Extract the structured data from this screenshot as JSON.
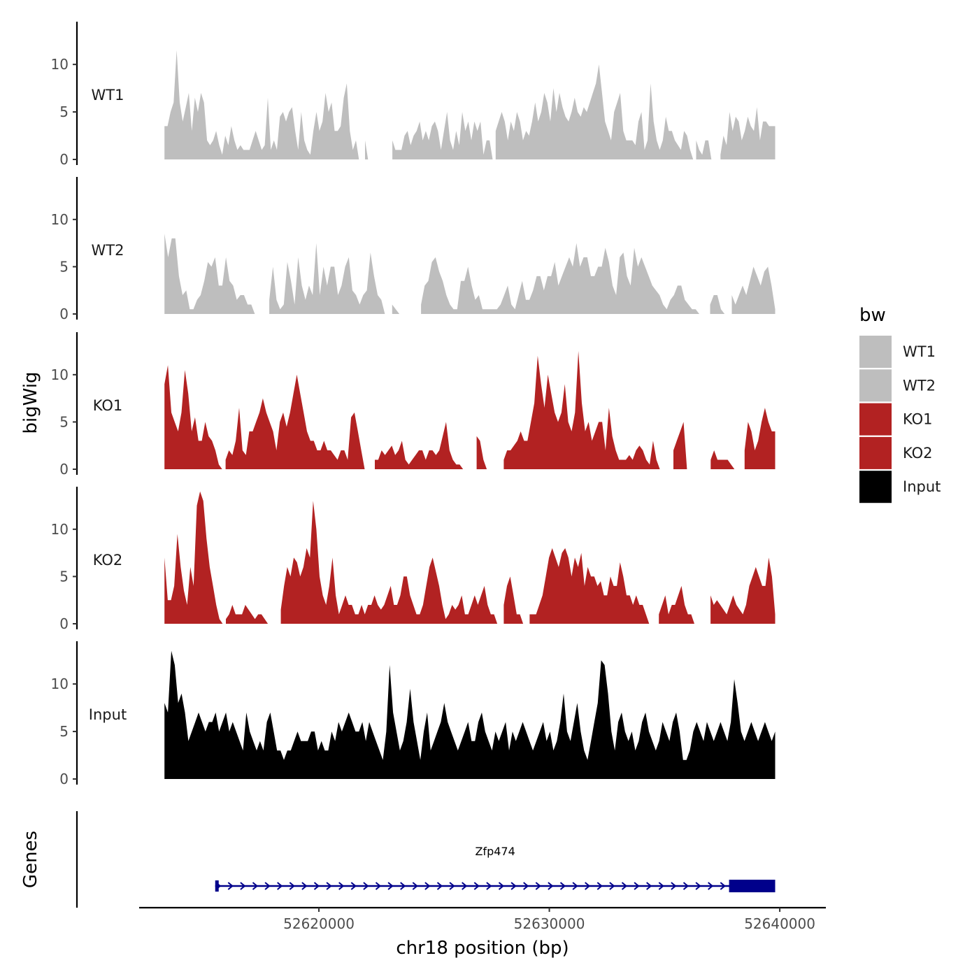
{
  "chart_data": {
    "type": "area",
    "xlabel": "chr18 position (bp)",
    "ylabel": "bigWig",
    "gene_panel_label": "Genes",
    "xlim": [
      52612200,
      52642000
    ],
    "x_ticks": [
      52620000,
      52630000,
      52640000
    ],
    "x_tick_labels": [
      "52620000",
      "52630000",
      "52640000"
    ],
    "ylim": [
      0,
      14.5
    ],
    "y_ticks": [
      0,
      5,
      10
    ],
    "y_tick_labels": [
      "0",
      "5",
      "10"
    ],
    "data_range": [
      52613300,
      52639800
    ],
    "legend": {
      "title": "bw",
      "placement": "right",
      "items": [
        {
          "label": "WT1",
          "color": "#bebebe"
        },
        {
          "label": "WT2",
          "color": "#bebebe"
        },
        {
          "label": "KO1",
          "color": "#b22222"
        },
        {
          "label": "KO2",
          "color": "#b22222"
        },
        {
          "label": "Input",
          "color": "#000000"
        }
      ]
    },
    "series": [
      {
        "name": "WT1",
        "color": "#bebebe",
        "values": [
          3.5,
          3.5,
          5,
          6,
          11.5,
          6,
          4,
          5.5,
          7,
          3,
          6.5,
          5,
          7,
          6,
          2,
          1.5,
          2,
          3,
          1.5,
          0.5,
          2.5,
          1.5,
          3.5,
          2,
          1,
          1.5,
          1,
          1,
          1,
          2,
          3,
          2,
          1,
          1.5,
          6.5,
          1,
          2,
          1,
          4.5,
          5,
          4,
          5,
          5.5,
          3,
          1,
          5,
          2,
          1,
          0.5,
          3,
          5,
          3,
          4,
          7,
          5,
          6,
          3,
          3,
          3.5,
          6.5,
          8,
          3,
          1,
          2,
          0,
          0,
          2,
          0,
          0,
          0,
          0,
          0,
          0,
          0,
          0,
          2,
          1,
          1,
          1,
          2.5,
          3,
          1.5,
          2.5,
          3,
          4,
          2,
          3,
          2,
          3.5,
          4,
          3,
          1,
          3,
          5,
          2,
          1,
          3,
          1.5,
          5,
          3,
          4,
          2,
          4,
          3,
          4,
          0.5,
          2,
          2,
          0,
          3,
          4,
          5,
          4,
          2,
          4,
          3,
          5,
          4,
          2,
          3,
          2.5,
          4,
          6,
          4,
          5,
          7,
          6,
          4,
          7.5,
          5,
          7,
          5.5,
          4.5,
          4,
          5,
          6.5,
          5,
          4.5,
          5.5,
          5,
          6,
          7,
          8,
          10,
          7,
          4,
          3,
          2,
          5,
          6,
          7,
          3,
          2,
          2,
          2,
          1.5,
          4,
          5,
          1,
          2,
          8,
          4,
          2,
          1,
          2,
          4.5,
          3,
          3,
          2,
          1.5,
          1,
          3,
          2.5,
          1,
          0,
          2,
          1,
          0.5,
          2,
          2,
          0,
          0,
          0,
          0.5,
          2.5,
          1.5,
          5,
          3,
          4.5,
          4,
          2,
          3,
          4.5,
          3.5,
          3,
          5.5,
          2,
          4,
          4,
          3.5,
          3.5,
          3.5
        ]
      },
      {
        "name": "WT2",
        "color": "#bebebe",
        "values": [
          8.5,
          6,
          8,
          8,
          4,
          2,
          2.5,
          0.5,
          0.5,
          1.5,
          2,
          3.5,
          5.5,
          5,
          6,
          3,
          3,
          6,
          3.5,
          3,
          1.5,
          2,
          2,
          1,
          1,
          0,
          0,
          0,
          0,
          1.5,
          5,
          1.5,
          0.5,
          1,
          5.5,
          3.5,
          1,
          6,
          3,
          1.5,
          3,
          2,
          7.5,
          2,
          5,
          3,
          5,
          5,
          2,
          3,
          5,
          6,
          2.5,
          2,
          1,
          2,
          2.5,
          6.5,
          4,
          2,
          1.5,
          0,
          0,
          1,
          0.5,
          0,
          0,
          0,
          0,
          0,
          0,
          1,
          3,
          3.5,
          5.5,
          6,
          4.5,
          3.5,
          2,
          1,
          0.5,
          0.5,
          3.5,
          3.5,
          5,
          3,
          1.5,
          2,
          0.5,
          0.5,
          0.5,
          0.5,
          0.5,
          1,
          2,
          3,
          1,
          0.5,
          2,
          3.5,
          1.5,
          1.5,
          2.5,
          4,
          4,
          2.5,
          4,
          4,
          5.5,
          3,
          4,
          5,
          6,
          5,
          7.5,
          5,
          6,
          6,
          4,
          4,
          5,
          5,
          7,
          5.5,
          3,
          2,
          6,
          6.5,
          4,
          3,
          7,
          5,
          6,
          5,
          4,
          3,
          2.5,
          2,
          1,
          0.5,
          1.5,
          2,
          3,
          3,
          1.5,
          1,
          0.5,
          0.5,
          0,
          0,
          0,
          1,
          2,
          2,
          0.5,
          0,
          0,
          2,
          1,
          2,
          3,
          2,
          3.5,
          5,
          4,
          3,
          4.5,
          5,
          3,
          0.5
        ]
      },
      {
        "name": "KO1",
        "color": "#b22222",
        "values": [
          9,
          11,
          6,
          5,
          4,
          6,
          10.5,
          8,
          4,
          5.5,
          3,
          3,
          5,
          3.5,
          3,
          2,
          0.5,
          0,
          1,
          2,
          1.5,
          3,
          6.5,
          2,
          1.5,
          4,
          4,
          5,
          6,
          7.5,
          6,
          5,
          4,
          2,
          5,
          6,
          4.5,
          6,
          8,
          10,
          8,
          6,
          4,
          3,
          3,
          2,
          2,
          3,
          2,
          2,
          1.5,
          1,
          2,
          2,
          1,
          5.5,
          6,
          4,
          2,
          0,
          0,
          0,
          1,
          1,
          2,
          1.5,
          2,
          2.5,
          1.5,
          2,
          3,
          1,
          0.5,
          1,
          1.5,
          2,
          2,
          1,
          2,
          2,
          1.5,
          2,
          3.5,
          5,
          2,
          1,
          0.5,
          0.5,
          0,
          0,
          0,
          0,
          3.5,
          3,
          1,
          0,
          0,
          0,
          0,
          0,
          1,
          2,
          2,
          2.5,
          3,
          4,
          3,
          3,
          5,
          7,
          12,
          9,
          6.5,
          10,
          8,
          6,
          5,
          6,
          9,
          5,
          4,
          6,
          12.5,
          7,
          4,
          5,
          3,
          4,
          5,
          5,
          2,
          6.5,
          3.5,
          2,
          1,
          1,
          1,
          1.5,
          1,
          2,
          2.5,
          2,
          1,
          0.5,
          3,
          1,
          0,
          0,
          0,
          0,
          2,
          3,
          4,
          5,
          0,
          0,
          0,
          0,
          0,
          0,
          0,
          1,
          2,
          1,
          1,
          1,
          1,
          0.5,
          0,
          0,
          0,
          2,
          5,
          4,
          2,
          3,
          5,
          6.5,
          5,
          4,
          4
        ]
      },
      {
        "name": "KO2",
        "color": "#b22222",
        "values": [
          7,
          2.5,
          2.5,
          4,
          9.5,
          6,
          3.5,
          2,
          6,
          4,
          12.5,
          14,
          13,
          9,
          6,
          4,
          2,
          0.5,
          0,
          0.5,
          1,
          2,
          1,
          1,
          1,
          2,
          1.5,
          1,
          0.5,
          1,
          1,
          0.5,
          0,
          0,
          0,
          0,
          1.5,
          4,
          6,
          5,
          7,
          6.5,
          5,
          6,
          8,
          7,
          13,
          10,
          5,
          3,
          2,
          4,
          7,
          3,
          1,
          2,
          3,
          2,
          2,
          1,
          1,
          2,
          1,
          2,
          2,
          3,
          2,
          1.5,
          2,
          3,
          4,
          2,
          2,
          3,
          5,
          5,
          3,
          2,
          1,
          1,
          2,
          4,
          6,
          7,
          5.5,
          4,
          2,
          0.5,
          1,
          2,
          1.5,
          2,
          3,
          1,
          1,
          2,
          3,
          2,
          3,
          4,
          2,
          1,
          1,
          0,
          0,
          2,
          4,
          5,
          3,
          1,
          1,
          0,
          0,
          1,
          1,
          1,
          2,
          3,
          5,
          7,
          8,
          7,
          6,
          7.5,
          8,
          7,
          5,
          7,
          6,
          7.5,
          4,
          6,
          5,
          5,
          4,
          4.5,
          3,
          3,
          5,
          4,
          4,
          6.5,
          5,
          3,
          3,
          2,
          3,
          2,
          2,
          1,
          0,
          0,
          0,
          1,
          2,
          3,
          1,
          2,
          2,
          3,
          4,
          2,
          1,
          1,
          0,
          0,
          0,
          0,
          0,
          3,
          2,
          2.5,
          2,
          1.5,
          1,
          2,
          3,
          2,
          1.5,
          1,
          2,
          4,
          5,
          6,
          5,
          4,
          4,
          7,
          5,
          1
        ]
      },
      {
        "name": "Input",
        "color": "#000000",
        "values": [
          8,
          7,
          13.5,
          12,
          8,
          9,
          7,
          4,
          5,
          6,
          7,
          6,
          5,
          6,
          6,
          7,
          5,
          6,
          7,
          5,
          6,
          5,
          4,
          3,
          7,
          5,
          4,
          3,
          4,
          3,
          6,
          7,
          5,
          3,
          3,
          2,
          3,
          3,
          4,
          5,
          4,
          4,
          4,
          5,
          5,
          3,
          4,
          3,
          3,
          5,
          4,
          6,
          5,
          6,
          7,
          6,
          5,
          5,
          6,
          4,
          6,
          5,
          4,
          3,
          2,
          5,
          12,
          7,
          5,
          3,
          4,
          6,
          9.5,
          6,
          4,
          2,
          5,
          7,
          3,
          4,
          5,
          6,
          8,
          6,
          5,
          4,
          3,
          4,
          5,
          6,
          4,
          4,
          6,
          7,
          5,
          4,
          3,
          5,
          4,
          5,
          6,
          3,
          5,
          4,
          5,
          6,
          5,
          4,
          3,
          4,
          5,
          6,
          4,
          5,
          3,
          4,
          6,
          9,
          5,
          4,
          6,
          8,
          5,
          3,
          2,
          4,
          6,
          8,
          12.5,
          12,
          9,
          5,
          3,
          6,
          7,
          5,
          4,
          5,
          3,
          4,
          6,
          7,
          5,
          4,
          3,
          4,
          6,
          5,
          4,
          6,
          7,
          5,
          2,
          2,
          3,
          5,
          6,
          5,
          4,
          6,
          5,
          4,
          5,
          6,
          5,
          4,
          6,
          10.5,
          8,
          5,
          4,
          5,
          6,
          5,
          4,
          5,
          6,
          5,
          4,
          5
        ]
      }
    ],
    "gene": {
      "name": "Zfp474",
      "strand": "+",
      "start": 52615500,
      "end": 52639800,
      "thick_start": 52637800,
      "thick_end": 52639800,
      "color": "#00008b"
    }
  }
}
